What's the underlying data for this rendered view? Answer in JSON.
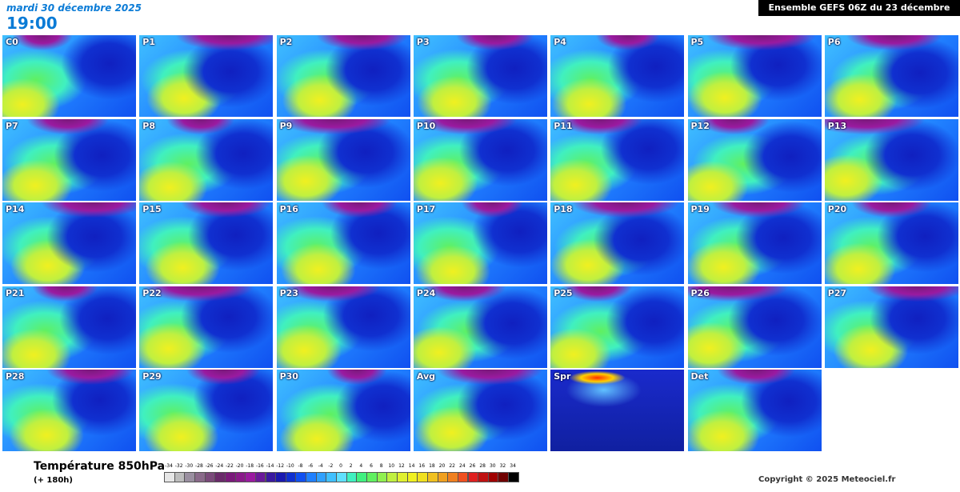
{
  "header": {
    "date": "mardi 30 décembre 2025",
    "time": "19:00",
    "run": "Ensemble GEFS 06Z du 23 décembre 2025"
  },
  "panels": [
    "C0",
    "P1",
    "P2",
    "P3",
    "P4",
    "P5",
    "P6",
    "P7",
    "P8",
    "P9",
    "P10",
    "P11",
    "P12",
    "P13",
    "P14",
    "P15",
    "P16",
    "P17",
    "P18",
    "P19",
    "P20",
    "P21",
    "P22",
    "P23",
    "P24",
    "P25",
    "P26",
    "P27",
    "P28",
    "P29",
    "P30",
    "Avg",
    "Spr",
    "Det"
  ],
  "legend": {
    "title": "Température 850hPa",
    "subtitle": "(+ 180h)",
    "scale": [
      -34,
      -32,
      -30,
      -28,
      -26,
      -24,
      -22,
      -20,
      -18,
      -16,
      -14,
      -12,
      -10,
      -8,
      -6,
      -4,
      -2,
      0,
      2,
      4,
      6,
      8,
      10,
      12,
      14,
      16,
      18,
      20,
      22,
      24,
      26,
      28,
      30,
      32,
      34
    ],
    "colors": [
      "#e6e6e6",
      "#bdbdbd",
      "#9a8fa0",
      "#8a6a8a",
      "#7a4a7a",
      "#6a2a6a",
      "#7a1a7a",
      "#8a1a8a",
      "#9a1aa0",
      "#6a1a9a",
      "#3a1aa0",
      "#1a1ab0",
      "#1030d0",
      "#1050f0",
      "#2080ff",
      "#30a0ff",
      "#40c0ff",
      "#60e0ff",
      "#40f0c0",
      "#40f080",
      "#60f060",
      "#90f050",
      "#c0f040",
      "#e0f030",
      "#f0f020",
      "#f0e020",
      "#f0c020",
      "#f0a020",
      "#f08020",
      "#f05020",
      "#e02020",
      "#c01010",
      "#a00000",
      "#700000",
      "#000000"
    ]
  },
  "copyright": "Copyright © 2025 Meteociel.fr"
}
